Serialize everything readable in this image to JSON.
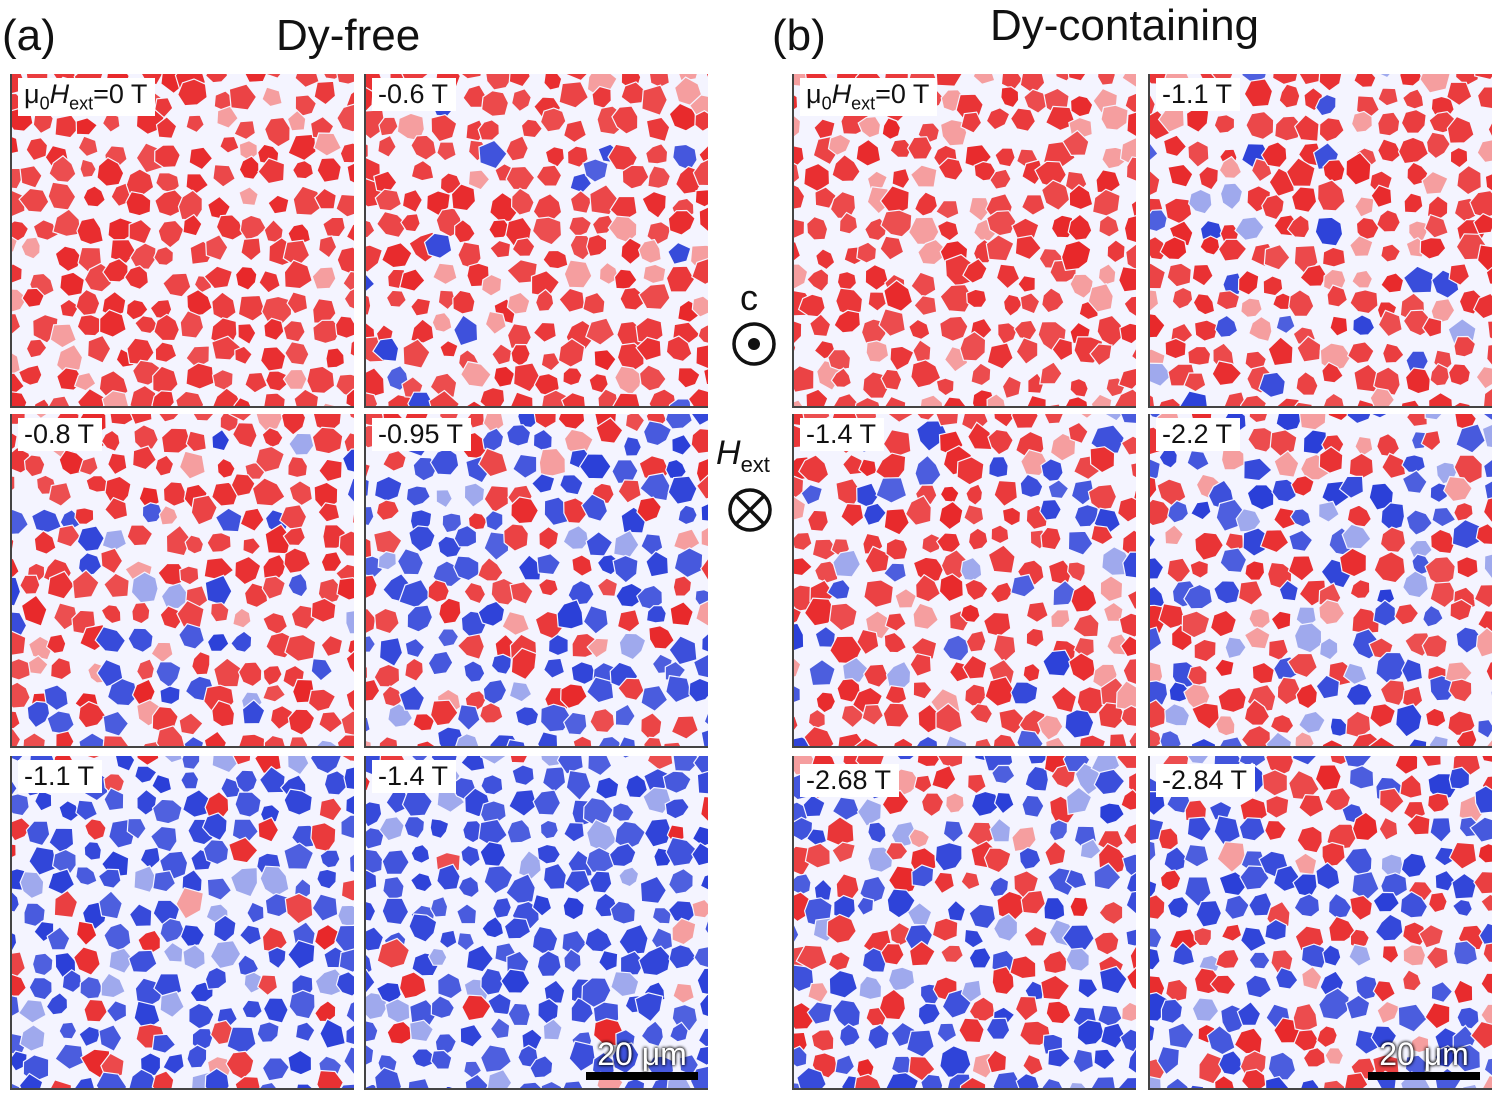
{
  "panel_a": {
    "label": "(a)",
    "title": "Dy-free",
    "frames": [
      {
        "field_prefix": "μ",
        "field_sub0": "0",
        "field_H": "H",
        "field_sub1": "ext",
        "field_value": "=0 T",
        "full": "μ0Hext=0 T",
        "reversed_fraction": 0.0
      },
      {
        "field_value": "-0.6 T",
        "reversed_fraction": 0.06
      },
      {
        "field_value": "-0.8 T",
        "reversed_fraction": 0.22
      },
      {
        "field_value": "-0.95 T",
        "reversed_fraction": 0.55
      },
      {
        "field_value": "-1.1 T",
        "reversed_fraction": 0.8
      },
      {
        "field_value": "-1.4 T",
        "reversed_fraction": 0.9
      }
    ],
    "scale_bar": "20 μm"
  },
  "panel_b": {
    "label": "(b)",
    "title": "Dy-containing",
    "frames": [
      {
        "field_prefix": "μ",
        "field_sub0": "0",
        "field_H": "H",
        "field_sub1": "ext",
        "field_value": "=0 T",
        "full": "μ0Hext=0 T",
        "reversed_fraction": 0.0
      },
      {
        "field_value": "-1.1 T",
        "reversed_fraction": 0.12
      },
      {
        "field_value": "-1.4 T",
        "reversed_fraction": 0.22
      },
      {
        "field_value": "-2.2 T",
        "reversed_fraction": 0.4
      },
      {
        "field_value": "-2.68 T",
        "reversed_fraction": 0.55
      },
      {
        "field_value": "-2.84 T",
        "reversed_fraction": 0.62
      }
    ],
    "scale_bar": "20 μm"
  },
  "legend": {
    "c_axis_label": "c",
    "c_axis_symbol": "dot-in-circle-icon",
    "field_label_H": "H",
    "field_label_sub": "ext",
    "field_symbol": "cross-in-circle-icon"
  },
  "colors": {
    "up_domain": "#e8282a",
    "down_domain": "#2a3fd8",
    "boundary": "#f4f4ff",
    "background": "#ffffff"
  }
}
